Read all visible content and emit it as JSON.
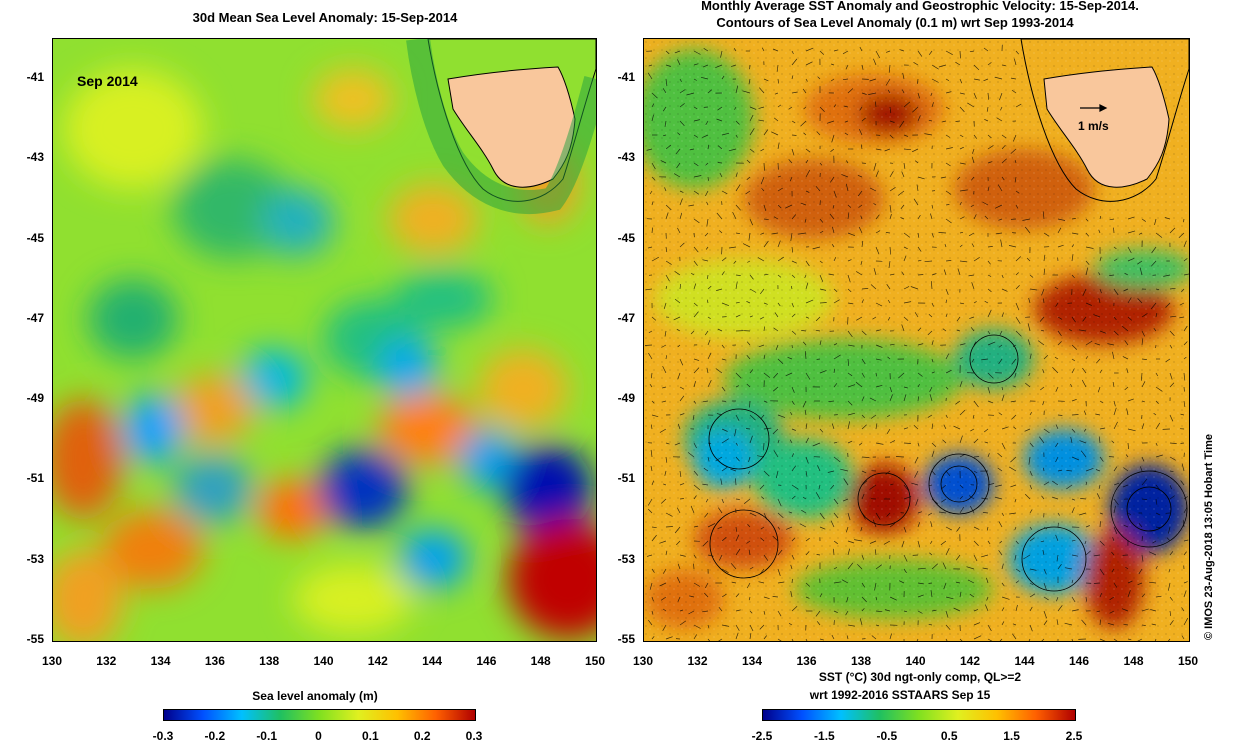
{
  "left_panel": {
    "title": "30d Mean Sea Level Anomaly: 15-Sep-2014",
    "month_label": "Sep 2014",
    "x_ticks": [
      "130",
      "132",
      "134",
      "136",
      "138",
      "140",
      "142",
      "144",
      "146",
      "148",
      "150"
    ],
    "y_ticks": [
      "-41",
      "-43",
      "-45",
      "-47",
      "-49",
      "-51",
      "-53",
      "-55"
    ],
    "colorbar": {
      "title": "Sea level anomaly (m)",
      "ticks": [
        "-0.3",
        "-0.2",
        "-0.1",
        "0",
        "0.1",
        "0.2",
        "0.3"
      ]
    }
  },
  "right_panel": {
    "title_line1": "Monthly Average SST Anomaly  and Geostrophic Velocity: 15-Sep-2014.",
    "title_line2": "Contours of Sea Level Anomaly (0.1 m) wrt Sep 1993-2014",
    "velocity_scale": "1 m/s",
    "x_ticks": [
      "130",
      "132",
      "134",
      "136",
      "138",
      "140",
      "142",
      "144",
      "146",
      "148",
      "150"
    ],
    "y_ticks": [
      "-41",
      "-43",
      "-45",
      "-47",
      "-49",
      "-51",
      "-53",
      "-55"
    ],
    "colorbar": {
      "title_line1": "SST (°C) 30d ngt-only comp, QL>=2",
      "title_line2": "wrt 1992-2016 SSTAARS Sep 15",
      "ticks": [
        "-2.5",
        "-1.5",
        "-0.5",
        "0.5",
        "1.5",
        "2.5"
      ]
    }
  },
  "credit": "© IMOS 23-Aug-2018 13:05 Hobart Time",
  "colors": {
    "land": "#f9c79c",
    "scale": [
      "#00008b",
      "#0050ff",
      "#00c0ff",
      "#20c060",
      "#80e020",
      "#e0f020",
      "#ffc000",
      "#ff6000",
      "#b00000"
    ]
  }
}
